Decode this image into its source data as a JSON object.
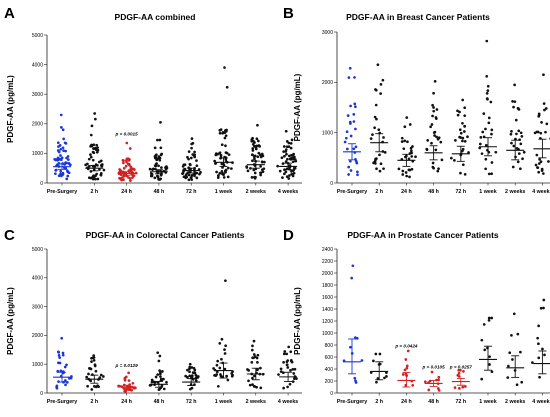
{
  "colors": {
    "blue": "#1a36d4",
    "red": "#d42020",
    "black": "#111111"
  },
  "chart_data": [
    {
      "letter": "A",
      "title": "PDGF-AA combined",
      "type": "scatter",
      "ylabel": "PDGF-AA (pg/mL)",
      "ylim": [
        0,
        5000
      ],
      "yticks": [
        "0",
        "1000",
        "2000",
        "3000",
        "4000",
        "5000"
      ],
      "categories": [
        "Pre-Surgery",
        "2 h",
        "24 h",
        "48 h",
        "72 h",
        "1 week",
        "2 weeks",
        "4 weeks"
      ],
      "point_colors": [
        "blue",
        "black",
        "red",
        "black",
        "black",
        "black",
        "black",
        "black"
      ],
      "means": [
        550,
        500,
        320,
        380,
        420,
        700,
        620,
        560
      ],
      "ci": [
        [
          460,
          640
        ],
        [
          410,
          590
        ],
        [
          260,
          380
        ],
        [
          310,
          450
        ],
        [
          340,
          500
        ],
        [
          560,
          840
        ],
        [
          500,
          740
        ],
        [
          450,
          670
        ]
      ],
      "max_points": [
        2300,
        2350,
        1350,
        2050,
        1500,
        3900,
        1950,
        1750
      ],
      "annotations": [
        {
          "category": "24 h",
          "text": "p = 0.0015",
          "y": 1600
        }
      ]
    },
    {
      "letter": "B",
      "title": "PDGF-AA in Breast Cancer Patients",
      "type": "scatter",
      "ylabel": "PDGF-AA (pg/mL)",
      "ylim": [
        0,
        3000
      ],
      "yticks": [
        "0",
        "1000",
        "2000",
        "3000"
      ],
      "categories": [
        "Pre-Surgery",
        "2 h",
        "24 h",
        "48 h",
        "72 h",
        "1 week",
        "2 weeks",
        "4 weeks"
      ],
      "point_colors": [
        "blue",
        "black",
        "black",
        "black",
        "black",
        "black",
        "black",
        "black"
      ],
      "means": [
        620,
        800,
        450,
        600,
        580,
        720,
        650,
        680
      ],
      "ci": [
        [
          460,
          780
        ],
        [
          620,
          980
        ],
        [
          330,
          570
        ],
        [
          460,
          740
        ],
        [
          430,
          730
        ],
        [
          540,
          900
        ],
        [
          460,
          850
        ],
        [
          500,
          870
        ]
      ],
      "max_points": [
        2280,
        2350,
        1300,
        2020,
        1650,
        2820,
        1950,
        2150
      ],
      "annotations": []
    },
    {
      "letter": "C",
      "title": "PDGF-AA in Colorectal Cancer Patients",
      "type": "scatter",
      "ylabel": "PDGF-AA (pg/mL)",
      "ylim": [
        0,
        5000
      ],
      "yticks": [
        "0",
        "1000",
        "2000",
        "3000",
        "4000",
        "5000"
      ],
      "categories": [
        "Pre-Surgery",
        "2 h",
        "24 h",
        "48 h",
        "72 h",
        "1 week",
        "2 weeks",
        "4 weeks"
      ],
      "point_colors": [
        "blue",
        "black",
        "red",
        "black",
        "black",
        "black",
        "black",
        "black"
      ],
      "means": [
        550,
        480,
        210,
        300,
        380,
        780,
        660,
        560
      ],
      "ci": [
        [
          380,
          720
        ],
        [
          340,
          620
        ],
        [
          150,
          270
        ],
        [
          200,
          400
        ],
        [
          260,
          500
        ],
        [
          520,
          1040
        ],
        [
          460,
          860
        ],
        [
          400,
          720
        ]
      ],
      "max_points": [
        1900,
        1300,
        700,
        1400,
        1000,
        3900,
        1800,
        1600
      ],
      "annotations": [
        {
          "category": "24 h",
          "text": "p = 0.0129",
          "y": 900
        }
      ]
    },
    {
      "letter": "D",
      "title": "PDGF-AA in Prostate Cancer Patients",
      "type": "scatter",
      "ylabel": "PDGF-AA (pg/mL)",
      "ylim": [
        0,
        2400
      ],
      "yticks": [
        "0",
        "200",
        "400",
        "600",
        "800",
        "1000",
        "1200",
        "1400",
        "1600",
        "1800",
        "2000",
        "2200",
        "2400"
      ],
      "categories": [
        "Pre-Surgery",
        "2 h",
        "24 h",
        "48 h",
        "72 h",
        "1 week",
        "2 weeks",
        "4 weeks"
      ],
      "point_colors": [
        "blue",
        "black",
        "red",
        "red",
        "red",
        "black",
        "black",
        "black"
      ],
      "means": [
        520,
        360,
        210,
        160,
        190,
        560,
        420,
        490
      ],
      "ci": [
        [
          320,
          900
        ],
        [
          220,
          520
        ],
        [
          100,
          340
        ],
        [
          110,
          210
        ],
        [
          130,
          240
        ],
        [
          380,
          780
        ],
        [
          260,
          620
        ],
        [
          320,
          700
        ]
      ],
      "max_points": [
        2120,
        650,
        700,
        350,
        380,
        1250,
        1320,
        1550
      ],
      "annotations": [
        {
          "category": "24 h",
          "text": "p = 0.0424",
          "y": 760
        },
        {
          "category": "48 h",
          "text": "p = 0.0105",
          "y": 410
        },
        {
          "category": "72 h",
          "text": "p = 0.0257",
          "y": 410
        }
      ]
    }
  ]
}
